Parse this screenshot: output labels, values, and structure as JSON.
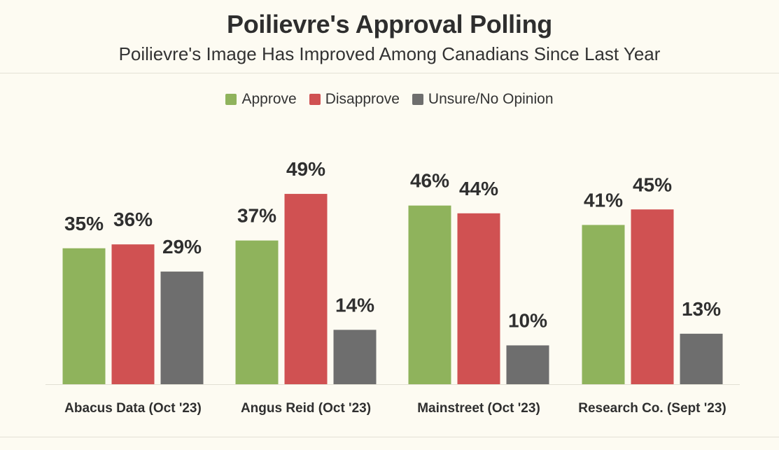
{
  "header": {
    "title": "Poilievre's Approval Polling",
    "subtitle": "Poilievre's Image Has Improved Among Canadians Since Last Year"
  },
  "chart_data": {
    "type": "bar",
    "title": "Poilievre's Approval Polling",
    "subtitle": "Poilievre's Image Has Improved Among Canadians Since Last Year",
    "categories": [
      "Abacus Data (Oct '23)",
      "Angus Reid (Oct '23)",
      "Mainstreet (Oct '23)",
      "Research Co. (Sept '23)"
    ],
    "series": [
      {
        "name": "Approve",
        "color": "#8fb35c",
        "values": [
          35,
          37,
          46,
          41
        ]
      },
      {
        "name": "Disapprove",
        "color": "#d05152",
        "values": [
          36,
          49,
          44,
          45
        ]
      },
      {
        "name": "Unsure/No Opinion",
        "color": "#6e6e6e",
        "values": [
          29,
          14,
          10,
          13
        ]
      }
    ],
    "value_suffix": "%",
    "legend_position": "top-center",
    "grid": false,
    "ylim": [
      0,
      50
    ]
  }
}
